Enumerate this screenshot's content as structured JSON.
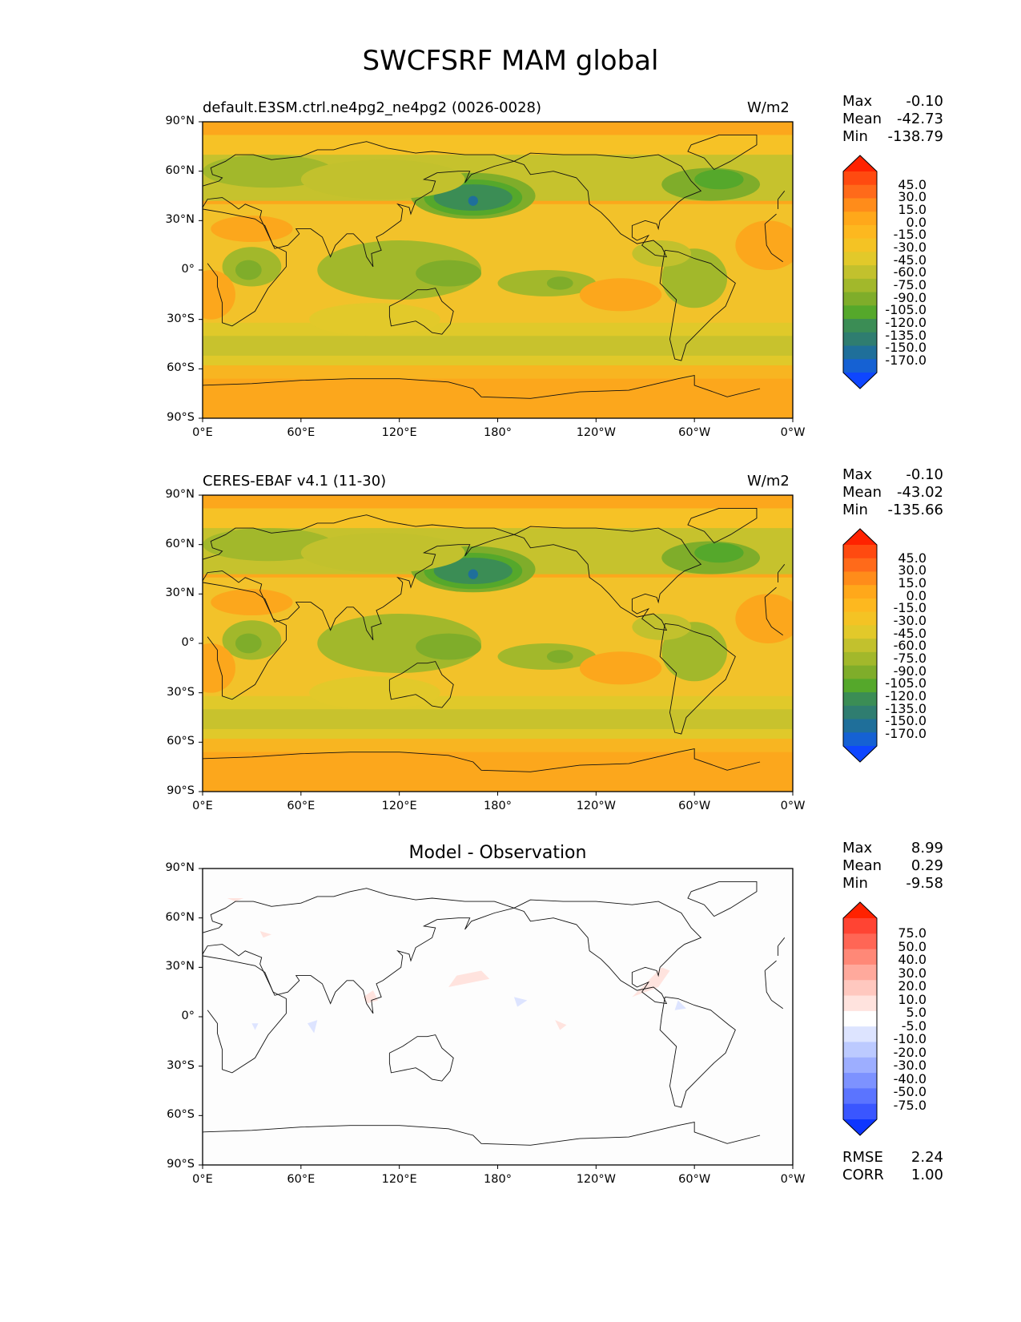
{
  "title": "SWCFSRF MAM global",
  "panels": [
    {
      "id": "model",
      "title_left": "default.E3SM.ctrl.ne4pg2_ne4pg2 (0026-0028)",
      "title_right": "W/m2",
      "title_center": "",
      "stats": [
        {
          "label": "Max",
          "value": "-0.10"
        },
        {
          "label": "Mean",
          "value": "-42.73"
        },
        {
          "label": "Min",
          "value": "-138.79"
        }
      ],
      "colorbar_labels": [
        "45.0",
        "30.0",
        "15.0",
        "0.0",
        "-15.0",
        "-30.0",
        "-45.0",
        "-60.0",
        "-75.0",
        "-90.0",
        "-105.0",
        "-120.0",
        "-135.0",
        "-150.0",
        "-170.0"
      ],
      "colorbar_colors": [
        "#ff2200",
        "#ff4a10",
        "#ff6a1a",
        "#ff8c1a",
        "#ffa81a",
        "#fdb81f",
        "#f4c324",
        "#e2c92a",
        "#c2c12d",
        "#a2b82b",
        "#7fad2a",
        "#55a82b",
        "#3b8d55",
        "#2f7d70",
        "#1f6f9a",
        "#1561d3",
        "#0e46ff"
      ],
      "projection_ticks": {
        "y": [
          "90°N",
          "60°N",
          "30°N",
          "0°",
          "30°S",
          "60°S",
          "90°S"
        ],
        "x": [
          "0°E",
          "60°E",
          "120°E",
          "180°",
          "120°W",
          "60°W",
          "0°W"
        ]
      },
      "map_style": "filled"
    },
    {
      "id": "obs",
      "title_left": "CERES-EBAF v4.1 (11-30)",
      "title_right": "W/m2",
      "title_center": "",
      "stats": [
        {
          "label": "Max",
          "value": "-0.10"
        },
        {
          "label": "Mean",
          "value": "-43.02"
        },
        {
          "label": "Min",
          "value": "-135.66"
        }
      ],
      "colorbar_labels": [
        "45.0",
        "30.0",
        "15.0",
        "0.0",
        "-15.0",
        "-30.0",
        "-45.0",
        "-60.0",
        "-75.0",
        "-90.0",
        "-105.0",
        "-120.0",
        "-135.0",
        "-150.0",
        "-170.0"
      ],
      "colorbar_colors": [
        "#ff2200",
        "#ff4a10",
        "#ff6a1a",
        "#ff8c1a",
        "#ffa81a",
        "#fdb81f",
        "#f4c324",
        "#e2c92a",
        "#c2c12d",
        "#a2b82b",
        "#7fad2a",
        "#55a82b",
        "#3b8d55",
        "#2f7d70",
        "#1f6f9a",
        "#1561d3",
        "#0e46ff"
      ],
      "projection_ticks": {
        "y": [
          "90°N",
          "60°N",
          "30°N",
          "0°",
          "30°S",
          "60°S",
          "90°S"
        ],
        "x": [
          "0°E",
          "60°E",
          "120°E",
          "180°",
          "120°W",
          "60°W",
          "0°W"
        ]
      },
      "map_style": "filled"
    },
    {
      "id": "diff",
      "title_left": "",
      "title_right": "",
      "title_center": "Model - Observation",
      "stats": [
        {
          "label": "Max",
          "value": "8.99"
        },
        {
          "label": "Mean",
          "value": "0.29"
        },
        {
          "label": "Min",
          "value": "-9.58"
        }
      ],
      "extra_stats": [
        {
          "label": "RMSE",
          "value": "2.24"
        },
        {
          "label": "CORR",
          "value": "1.00"
        }
      ],
      "colorbar_labels": [
        "75.0",
        "50.0",
        "40.0",
        "30.0",
        "20.0",
        "10.0",
        "5.0",
        "-5.0",
        "-10.0",
        "-20.0",
        "-30.0",
        "-40.0",
        "-50.0",
        "-75.0"
      ],
      "colorbar_colors": [
        "#ff2200",
        "#ff4433",
        "#ff6655",
        "#ff8877",
        "#ffa99c",
        "#ffc8bf",
        "#ffe3de",
        "#ffffff",
        "#dde4ff",
        "#bccaff",
        "#9daeff",
        "#7d92ff",
        "#5b74ff",
        "#3a56ff",
        "#0e36ff"
      ],
      "projection_ticks": {
        "y": [
          "90°N",
          "60°N",
          "30°N",
          "0°",
          "30°S",
          "60°S",
          "90°S"
        ],
        "x": [
          "0°E",
          "60°E",
          "120°E",
          "180°",
          "120°W",
          "60°W",
          "0°W"
        ]
      },
      "map_style": "diff"
    }
  ]
}
